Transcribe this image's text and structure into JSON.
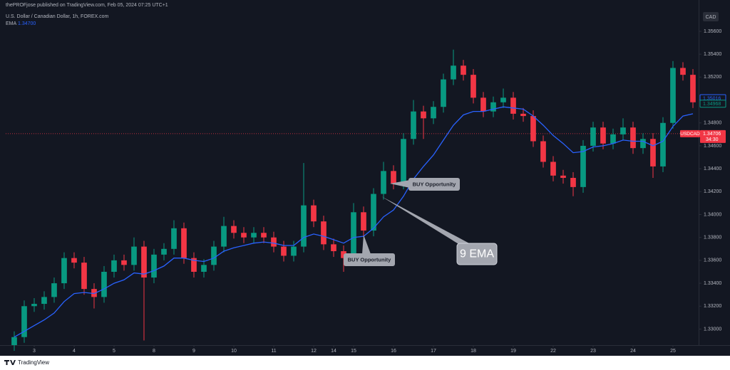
{
  "chart_data": {
    "type": "candlestick",
    "attribution": "thePROFjose published on TradingView.com, Feb 05, 2024 07:25 UTC+1",
    "title": "U.S. Dollar / Canadian Dollar, 1h, FOREX.com",
    "currency": "CAD",
    "up_color": "#089981",
    "down_color": "#f23645",
    "grid": false,
    "x": [
      -0.5,
      -0.25,
      0,
      0.25,
      0.5,
      0.75,
      1,
      1.25,
      1.5,
      1.75,
      2,
      2.25,
      2.5,
      2.75,
      3,
      3.25,
      3.5,
      3.75,
      4,
      4.25,
      4.5,
      4.75,
      5,
      5.25,
      5.5,
      5.75,
      6,
      6.25,
      6.5,
      6.75,
      7,
      7.25,
      7.5,
      7.75,
      8,
      8.25,
      8.5,
      8.75,
      9,
      9.25,
      9.5,
      9.75,
      10,
      10.25,
      10.5,
      10.75,
      11,
      11.25,
      11.5,
      11.75,
      12,
      12.25,
      12.5,
      12.75,
      13,
      13.25,
      13.5,
      13.75,
      14,
      14.25,
      14.5,
      14.75,
      15,
      15.25,
      15.5,
      15.75,
      16,
      16.25,
      16.5
    ],
    "open": [
      1.3286,
      1.3293,
      1.332,
      1.3322,
      1.3328,
      1.334,
      1.3362,
      1.3358,
      1.3335,
      1.3328,
      1.335,
      1.336,
      1.3356,
      1.3372,
      1.3345,
      1.3365,
      1.337,
      1.3388,
      1.3362,
      1.335,
      1.3356,
      1.3372,
      1.339,
      1.3384,
      1.338,
      1.3384,
      1.338,
      1.3372,
      1.3364,
      1.3372,
      1.3408,
      1.3394,
      1.3374,
      1.3368,
      1.3362,
      1.3402,
      1.3386,
      1.3418,
      1.3438,
      1.3427,
      1.3466,
      1.349,
      1.3484,
      1.3494,
      1.3518,
      1.353,
      1.3522,
      1.3502,
      1.349,
      1.3498,
      1.3502,
      1.3488,
      1.3486,
      1.3464,
      1.3446,
      1.3434,
      1.3432,
      1.3424,
      1.346,
      1.3476,
      1.3462,
      1.347,
      1.3476,
      1.3458,
      1.3466,
      1.3442,
      1.348,
      1.3528,
      1.3522
    ],
    "high": [
      1.3298,
      1.3325,
      1.3327,
      1.3333,
      1.3345,
      1.3367,
      1.3367,
      1.3363,
      1.334,
      1.3355,
      1.3365,
      1.3365,
      1.338,
      1.3377,
      1.337,
      1.3375,
      1.3395,
      1.3393,
      1.3367,
      1.3361,
      1.3377,
      1.3398,
      1.3395,
      1.3389,
      1.3389,
      1.3389,
      1.3385,
      1.3377,
      1.3377,
      1.3445,
      1.3413,
      1.3399,
      1.3379,
      1.3373,
      1.341,
      1.3407,
      1.3423,
      1.3446,
      1.3443,
      1.3471,
      1.35,
      1.3495,
      1.3499,
      1.3523,
      1.3544,
      1.3535,
      1.3527,
      1.3507,
      1.3503,
      1.351,
      1.3507,
      1.3493,
      1.3491,
      1.3469,
      1.3451,
      1.3439,
      1.3437,
      1.3465,
      1.3481,
      1.3481,
      1.3475,
      1.3484,
      1.3481,
      1.3471,
      1.3471,
      1.3485,
      1.3534,
      1.3533,
      1.3527
    ],
    "low": [
      1.3281,
      1.3288,
      1.3315,
      1.3317,
      1.3323,
      1.3335,
      1.3353,
      1.333,
      1.3318,
      1.3323,
      1.3345,
      1.3351,
      1.3351,
      1.329,
      1.334,
      1.336,
      1.3365,
      1.3357,
      1.3345,
      1.3345,
      1.3351,
      1.3367,
      1.3379,
      1.3375,
      1.3375,
      1.3375,
      1.3367,
      1.3359,
      1.3359,
      1.3367,
      1.3389,
      1.3369,
      1.3363,
      1.335,
      1.3357,
      1.3381,
      1.3381,
      1.3413,
      1.3422,
      1.3422,
      1.3461,
      1.3466,
      1.3479,
      1.3489,
      1.3513,
      1.3517,
      1.3497,
      1.3485,
      1.3485,
      1.3493,
      1.3483,
      1.3481,
      1.3459,
      1.3441,
      1.3429,
      1.3427,
      1.3416,
      1.3419,
      1.3455,
      1.3457,
      1.3457,
      1.3465,
      1.3453,
      1.3453,
      1.3432,
      1.3437,
      1.3475,
      1.3517,
      1.3493
    ],
    "close": [
      1.3293,
      1.332,
      1.3322,
      1.3328,
      1.334,
      1.3362,
      1.3358,
      1.3335,
      1.3328,
      1.335,
      1.336,
      1.3356,
      1.3372,
      1.3345,
      1.3365,
      1.337,
      1.3388,
      1.3362,
      1.335,
      1.3356,
      1.3372,
      1.339,
      1.3384,
      1.338,
      1.3384,
      1.338,
      1.3372,
      1.3364,
      1.3372,
      1.3408,
      1.3394,
      1.3374,
      1.3368,
      1.3362,
      1.3402,
      1.3386,
      1.3418,
      1.3438,
      1.3427,
      1.3466,
      1.349,
      1.3484,
      1.3494,
      1.3518,
      1.353,
      1.3522,
      1.3502,
      1.349,
      1.3498,
      1.3502,
      1.3488,
      1.3486,
      1.3464,
      1.3446,
      1.3434,
      1.3432,
      1.3424,
      1.346,
      1.3476,
      1.3462,
      1.347,
      1.3476,
      1.3458,
      1.3466,
      1.3442,
      1.348,
      1.3528,
      1.3522,
      1.3498
    ],
    "ema": {
      "name": "EMA",
      "legend_value": "1.34700",
      "color": "#2962ff",
      "values": [
        1.3293,
        1.3298,
        1.3303,
        1.3308,
        1.3314,
        1.3324,
        1.3331,
        1.3332,
        1.3331,
        1.3335,
        1.334,
        1.3343,
        1.3349,
        1.3348,
        1.3351,
        1.3355,
        1.3362,
        1.3362,
        1.336,
        1.3359,
        1.3362,
        1.3368,
        1.3371,
        1.3373,
        1.3375,
        1.3376,
        1.3375,
        1.3373,
        1.3373,
        1.338,
        1.3383,
        1.3381,
        1.3378,
        1.3375,
        1.338,
        1.3381,
        1.3388,
        1.3398,
        1.3404,
        1.3416,
        1.3431,
        1.3442,
        1.3452,
        1.3465,
        1.3478,
        1.3487,
        1.349,
        1.349,
        1.3492,
        1.3494,
        1.3493,
        1.3492,
        1.3486,
        1.3478,
        1.3469,
        1.3462,
        1.3454,
        1.3455,
        1.3459,
        1.346,
        1.3462,
        1.3465,
        1.3464,
        1.3464,
        1.346,
        1.3464,
        1.3477,
        1.3486,
        1.3488
      ]
    },
    "xlim": [
      -0.714,
      16.643
    ],
    "ylim": [
      1.3286,
      1.3578
    ],
    "xticks": [
      {
        "value": 0,
        "label": "3"
      },
      {
        "value": 1,
        "label": "4"
      },
      {
        "value": 2,
        "label": "5"
      },
      {
        "value": 3,
        "label": "8"
      },
      {
        "value": 4,
        "label": "9"
      },
      {
        "value": 5,
        "label": "10"
      },
      {
        "value": 6,
        "label": "11"
      },
      {
        "value": 7,
        "label": "12"
      },
      {
        "value": 7.5,
        "label": "14"
      },
      {
        "value": 8,
        "label": "15"
      },
      {
        "value": 9,
        "label": "16"
      },
      {
        "value": 10,
        "label": "17"
      },
      {
        "value": 11,
        "label": "18"
      },
      {
        "value": 12,
        "label": "19"
      },
      {
        "value": 13,
        "label": "22"
      },
      {
        "value": 14,
        "label": "23"
      },
      {
        "value": 15,
        "label": "24"
      },
      {
        "value": 16,
        "label": "25"
      }
    ],
    "yticks": [
      {
        "value": 1.33,
        "label": "1.33000"
      },
      {
        "value": 1.332,
        "label": "1.33200"
      },
      {
        "value": 1.334,
        "label": "1.33400"
      },
      {
        "value": 1.336,
        "label": "1.33600"
      },
      {
        "value": 1.338,
        "label": "1.33800"
      },
      {
        "value": 1.34,
        "label": "1.34000"
      },
      {
        "value": 1.342,
        "label": "1.34200"
      },
      {
        "value": 1.344,
        "label": "1.34400"
      },
      {
        "value": 1.346,
        "label": "1.34600"
      },
      {
        "value": 1.348,
        "label": "1.34800"
      },
      {
        "value": 1.35,
        "label": "1.35000"
      },
      {
        "value": 1.352,
        "label": "1.35200"
      },
      {
        "value": 1.354,
        "label": "1.35400"
      },
      {
        "value": 1.356,
        "label": "1.35600"
      }
    ],
    "axis_markers": [
      {
        "value": 1.35016,
        "label": "1.35016",
        "color": "#2962ff"
      },
      {
        "value": 1.34968,
        "label": "1.34968",
        "color": "#089981"
      }
    ],
    "price_line": {
      "symbol": "USDCAD",
      "value": 1.34706,
      "label": "1.34706",
      "countdown": "34:30",
      "color": "#f23645"
    },
    "annotations": [
      "BUY Opportunity",
      "BUY Opportunity",
      "9 EMA"
    ],
    "footer": "TradingView"
  }
}
